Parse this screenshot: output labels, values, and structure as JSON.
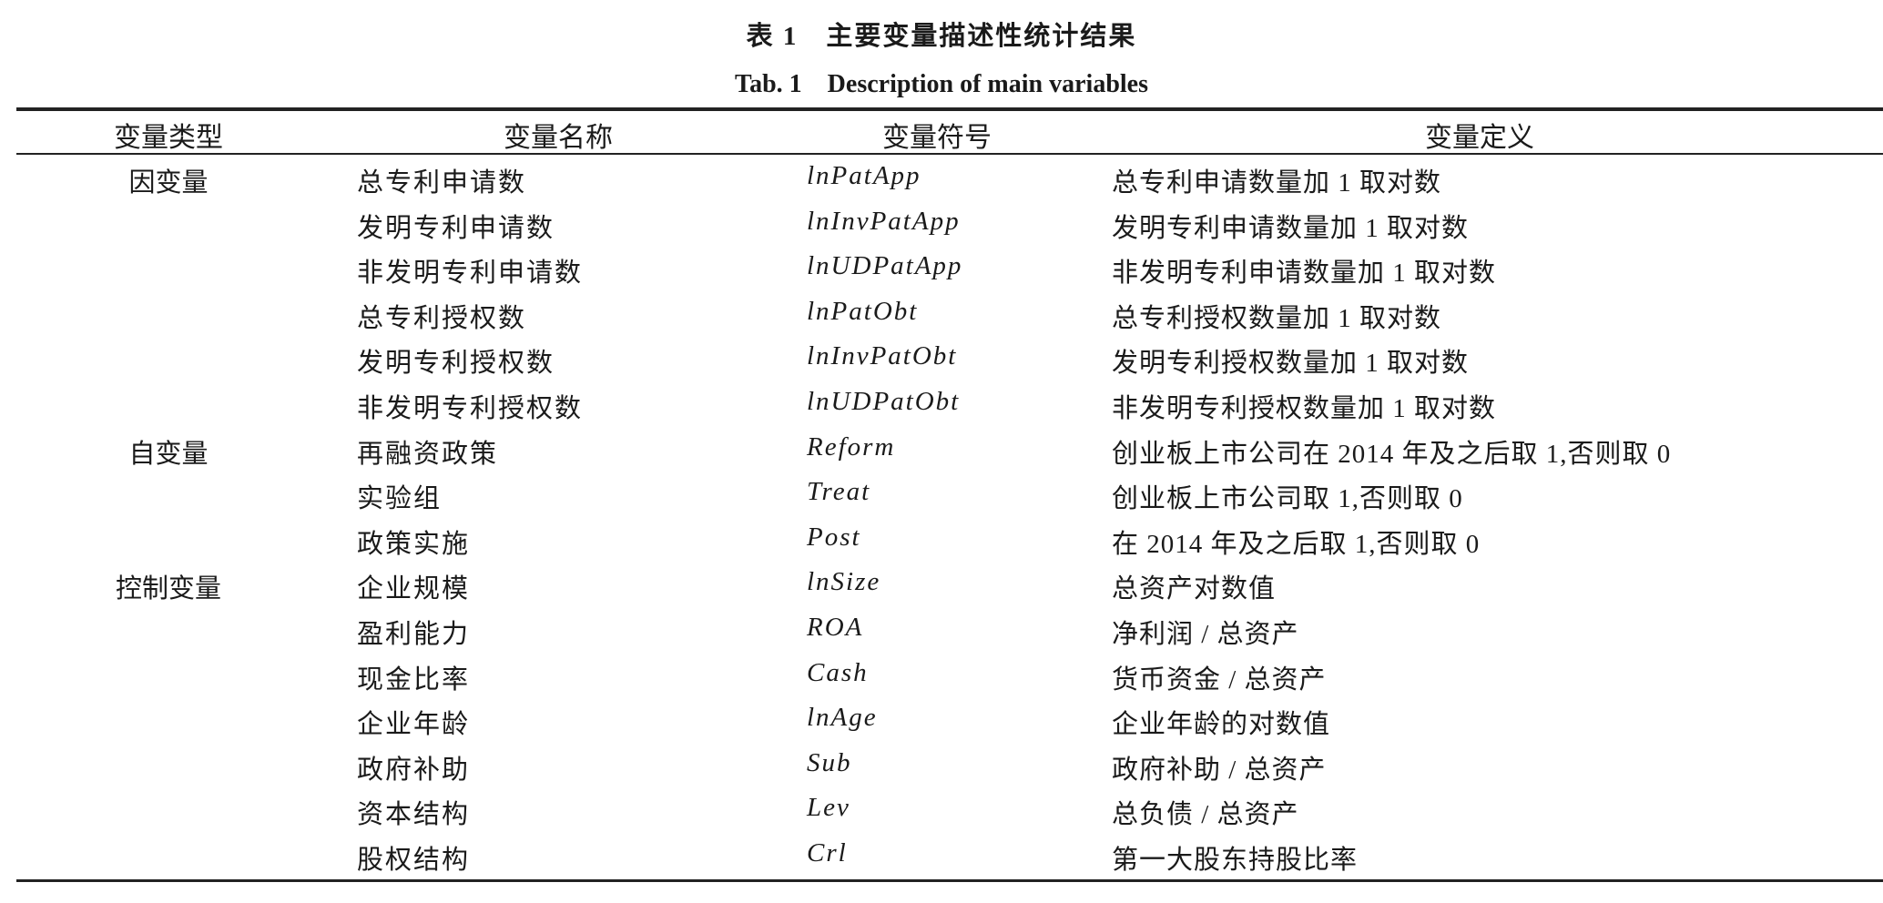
{
  "title_cn": "表 1　主要变量描述性统计结果",
  "title_en": "Tab. 1　Description of main variables",
  "headers": [
    "变量类型",
    "变量名称",
    "变量符号",
    "变量定义"
  ],
  "rows": [
    {
      "category": "因变量",
      "name": "总专利申请数",
      "symbol": "lnPatApp",
      "definition": "总专利申请数量加 1 取对数"
    },
    {
      "category": "",
      "name": "发明专利申请数",
      "symbol": "lnInvPatApp",
      "definition": "发明专利申请数量加 1 取对数"
    },
    {
      "category": "",
      "name": "非发明专利申请数",
      "symbol": "lnUDPatApp",
      "definition": "非发明专利申请数量加 1 取对数"
    },
    {
      "category": "",
      "name": "总专利授权数",
      "symbol": "lnPatObt",
      "definition": "总专利授权数量加 1 取对数"
    },
    {
      "category": "",
      "name": "发明专利授权数",
      "symbol": "lnInvPatObt",
      "definition": "发明专利授权数量加 1 取对数"
    },
    {
      "category": "",
      "name": "非发明专利授权数",
      "symbol": "lnUDPatObt",
      "definition": "非发明专利授权数量加 1 取对数"
    },
    {
      "category": "自变量",
      "name": "再融资政策",
      "symbol": "Reform",
      "definition": "创业板上市公司在 2014 年及之后取 1,否则取 0"
    },
    {
      "category": "",
      "name": "实验组",
      "symbol": "Treat",
      "definition": "创业板上市公司取 1,否则取 0"
    },
    {
      "category": "",
      "name": "政策实施",
      "symbol": "Post",
      "definition": "在 2014 年及之后取 1,否则取 0"
    },
    {
      "category": "控制变量",
      "name": "企业规模",
      "symbol": "lnSize",
      "definition": "总资产对数值"
    },
    {
      "category": "",
      "name": "盈利能力",
      "symbol": "ROA",
      "definition": "净利润 / 总资产"
    },
    {
      "category": "",
      "name": "现金比率",
      "symbol": "Cash",
      "definition": "货币资金 / 总资产"
    },
    {
      "category": "",
      "name": "企业年龄",
      "symbol": "lnAge",
      "definition": "企业年龄的对数值"
    },
    {
      "category": "",
      "name": "政府补助",
      "symbol": "Sub",
      "definition": "政府补助 / 总资产"
    },
    {
      "category": "",
      "name": "资本结构",
      "symbol": "Lev",
      "definition": "总负债 / 总资产"
    },
    {
      "category": "",
      "name": "股权结构",
      "symbol": "Crl",
      "definition": "第一大股东持股比率"
    }
  ]
}
